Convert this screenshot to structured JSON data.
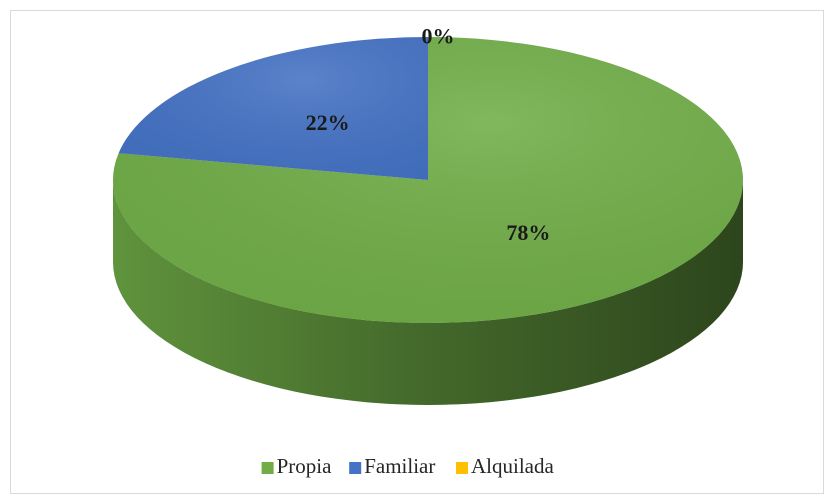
{
  "chart_data": {
    "type": "pie",
    "pie3d": true,
    "categories": [
      "Propia",
      "Familiar",
      "Alquilada"
    ],
    "values": [
      78,
      22,
      0
    ],
    "value_labels": [
      "78%",
      "22%",
      "0%"
    ],
    "colors": [
      "#70ad47",
      "#4472c4",
      "#ffc000"
    ],
    "legend": "bottom"
  }
}
